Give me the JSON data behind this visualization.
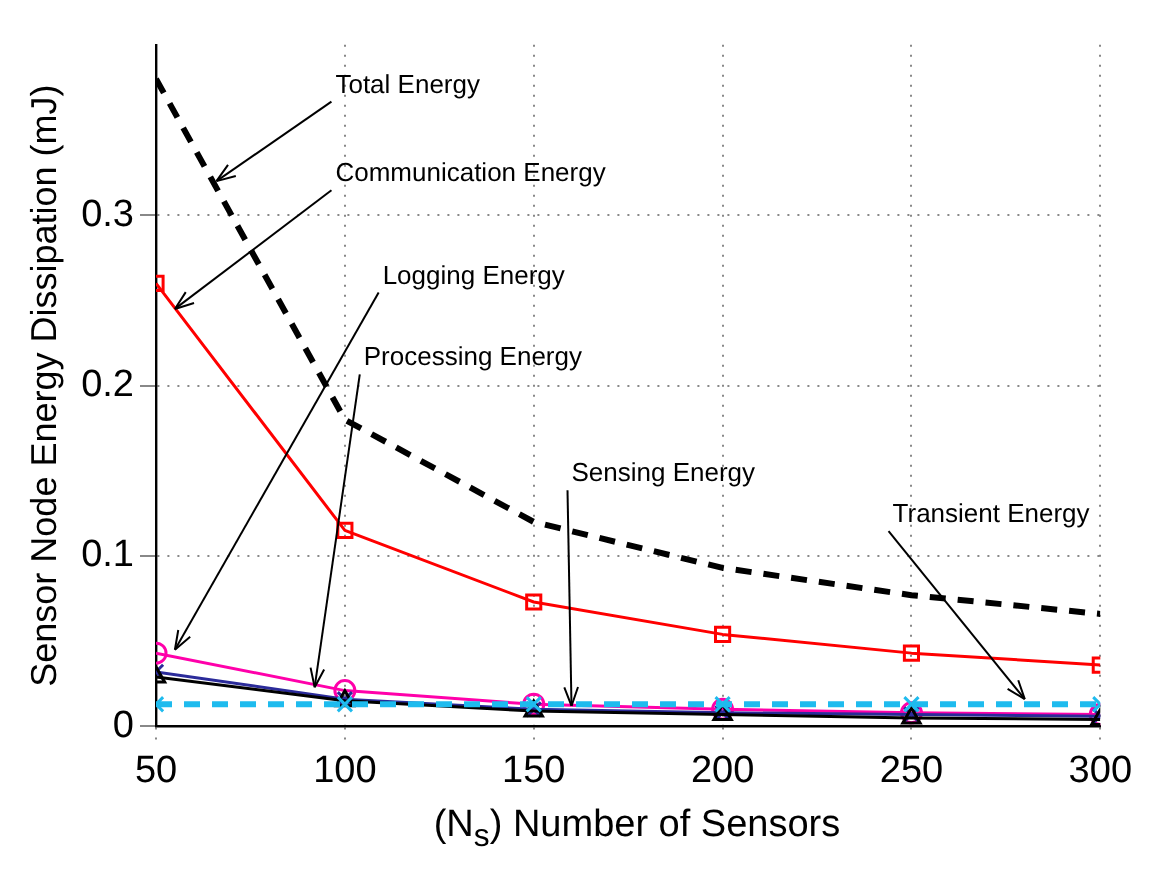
{
  "chart_data": {
    "type": "line",
    "xlabel": "(N$_{s}$) Number of Sensors",
    "ylabel": "Sensor Node Energy Dissipation (mJ)",
    "x": [
      50,
      100,
      150,
      200,
      250,
      300
    ],
    "xlim": [
      50,
      300
    ],
    "xticks": [
      50,
      100,
      150,
      200,
      250,
      300
    ],
    "ylim": [
      0,
      0.4
    ],
    "yticks": [
      0,
      0.1,
      0.2,
      0.3
    ],
    "grid": true,
    "legend": false,
    "series": [
      {
        "color": "#000000",
        "line_style": "dashed",
        "marker": "none",
        "values": [
          0.38,
          0.18,
          0.12,
          0.093,
          0.077,
          0.066
        ]
      },
      {
        "color": "#ff0000",
        "line_style": "solid",
        "marker": "square",
        "values": [
          0.26,
          0.115,
          0.073,
          0.054,
          0.043,
          0.036
        ]
      },
      {
        "color": "#ff00aa",
        "line_style": "solid",
        "marker": "circle",
        "values": [
          0.043,
          0.021,
          0.013,
          0.01,
          0.008,
          0.007
        ]
      },
      {
        "color": "#2b2b9a",
        "line_style": "solid",
        "marker": "cross",
        "values": [
          0.032,
          0.016,
          0.01,
          0.008,
          0.007,
          0.006
        ]
      },
      {
        "color": "#000000",
        "line_style": "solid",
        "marker": "triangle",
        "values": [
          0.029,
          0.015,
          0.009,
          0.007,
          0.005,
          0.004
        ]
      },
      {
        "color": "#1ebbee",
        "line_style": "dashed",
        "marker": "cross",
        "values": [
          0.013,
          0.013,
          0.013,
          0.013,
          0.013,
          0.013
        ]
      }
    ],
    "annotations": [
      {
        "text": "Total Energy",
        "x": 66,
        "y": 0.32
      },
      {
        "text": "Communication Energy",
        "x": 55,
        "y": 0.245
      },
      {
        "text": "Logging Energy",
        "x": 55,
        "y": 0.045
      },
      {
        "text": "Processing Energy",
        "x": 92,
        "y": 0.023
      },
      {
        "text": "Sensing Energy",
        "x": 160,
        "y": 0.012
      },
      {
        "text": "Transient Energy",
        "x": 280,
        "y": 0.016
      }
    ]
  }
}
